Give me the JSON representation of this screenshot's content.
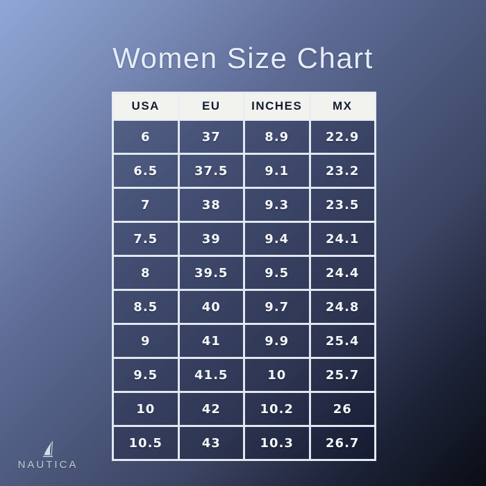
{
  "page": {
    "title": "Women Size Chart"
  },
  "brand": {
    "name": "NAUTICA",
    "logo_icon": "sailboat-sail-icon"
  },
  "colors": {
    "background_gradient_start": "#90a7d6",
    "background_gradient_end": "#0a0d15",
    "header_bg": "#f2f3ef",
    "header_text": "#141c30",
    "cell_bg_overlay": "rgba(10,16,38,0.28)",
    "cell_border": "#e2e8f1",
    "cell_text": "#f4f7fb",
    "title_text": "#e6ecf7",
    "brand_text": "#c3ccd8"
  },
  "chart_data": {
    "type": "table",
    "title": "Women Size Chart",
    "columns": [
      "USA",
      "EU",
      "INCHES",
      "MX"
    ],
    "rows": [
      [
        "6",
        "37",
        "8.9",
        "22.9"
      ],
      [
        "6.5",
        "37.5",
        "9.1",
        "23.2"
      ],
      [
        "7",
        "38",
        "9.3",
        "23.5"
      ],
      [
        "7.5",
        "39",
        "9.4",
        "24.1"
      ],
      [
        "8",
        "39.5",
        "9.5",
        "24.4"
      ],
      [
        "8.5",
        "40",
        "9.7",
        "24.8"
      ],
      [
        "9",
        "41",
        "9.9",
        "25.4"
      ],
      [
        "9.5",
        "41.5",
        "10",
        "25.7"
      ],
      [
        "10",
        "42",
        "10.2",
        "26"
      ],
      [
        "10.5",
        "43",
        "10.3",
        "26.7"
      ]
    ]
  }
}
